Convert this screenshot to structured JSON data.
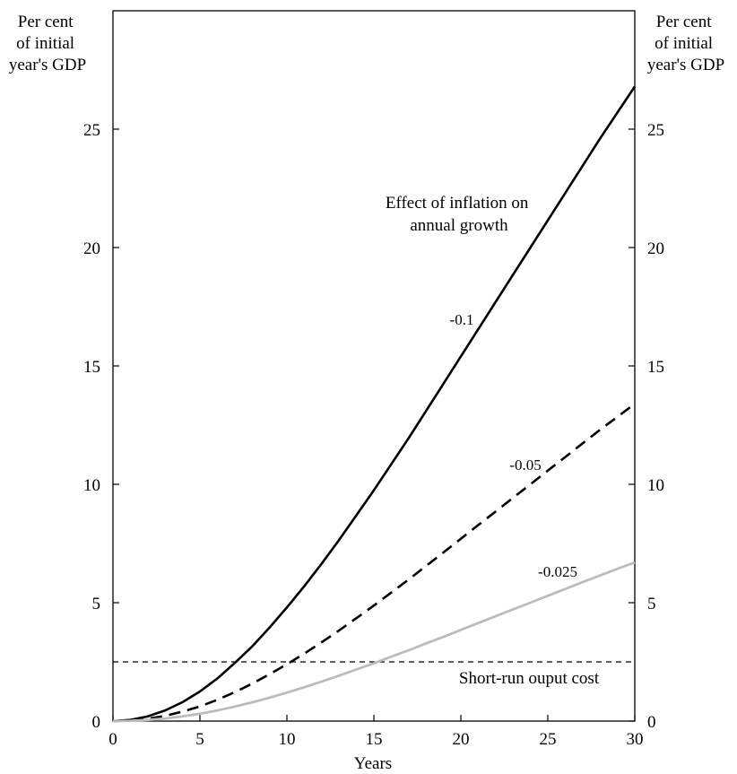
{
  "chart_data": {
    "type": "line",
    "title": "",
    "xlabel": "Years",
    "ylabel_left": [
      "Per cent",
      "of initial",
      "year's GDP"
    ],
    "ylabel_right": [
      "Per cent",
      "of initial",
      "year's GDP"
    ],
    "xlim": [
      0,
      30
    ],
    "ylim": [
      0,
      30
    ],
    "xticks": [
      0,
      5,
      10,
      15,
      20,
      25,
      30
    ],
    "yticks": [
      0,
      5,
      10,
      15,
      20,
      25
    ],
    "grid": false,
    "legend_title": [
      "Effect of inflation on",
      "annual growth"
    ],
    "series": [
      {
        "name": "-0.1",
        "style": "solid",
        "color": "#000000",
        "x": [
          0,
          1,
          2,
          3,
          4,
          5,
          6,
          7,
          8,
          9,
          10,
          11,
          12,
          13,
          14,
          15,
          16,
          17,
          18,
          19,
          20,
          21,
          22,
          23,
          24,
          25,
          26,
          27,
          28,
          29,
          30
        ],
        "y": [
          0,
          0.05,
          0.2,
          0.45,
          0.8,
          1.25,
          1.8,
          2.45,
          3.15,
          3.95,
          4.8,
          5.7,
          6.65,
          7.65,
          8.7,
          9.75,
          10.85,
          11.95,
          13.1,
          14.25,
          15.4,
          16.55,
          17.7,
          18.85,
          20.0,
          21.15,
          22.3,
          23.45,
          24.6,
          25.7,
          26.8
        ]
      },
      {
        "name": "-0.05",
        "style": "dashed",
        "color": "#000000",
        "x": [
          0,
          1,
          2,
          3,
          4,
          5,
          6,
          7,
          8,
          9,
          10,
          11,
          12,
          13,
          14,
          15,
          16,
          17,
          18,
          19,
          20,
          21,
          22,
          23,
          24,
          25,
          26,
          27,
          28,
          29,
          30
        ],
        "y": [
          0,
          0.03,
          0.1,
          0.22,
          0.4,
          0.62,
          0.9,
          1.22,
          1.58,
          1.98,
          2.4,
          2.85,
          3.33,
          3.83,
          4.35,
          4.88,
          5.43,
          5.98,
          6.55,
          7.12,
          7.7,
          8.28,
          8.85,
          9.43,
          10.0,
          10.58,
          11.15,
          11.73,
          12.3,
          12.85,
          13.4
        ]
      },
      {
        "name": "-0.025",
        "style": "solid",
        "color": "#bcbcbc",
        "x": [
          0,
          1,
          2,
          3,
          4,
          5,
          6,
          7,
          8,
          9,
          10,
          11,
          12,
          13,
          14,
          15,
          16,
          17,
          18,
          19,
          20,
          21,
          22,
          23,
          24,
          25,
          26,
          27,
          28,
          29,
          30
        ],
        "y": [
          0,
          0.01,
          0.05,
          0.11,
          0.2,
          0.31,
          0.45,
          0.61,
          0.79,
          0.99,
          1.2,
          1.43,
          1.67,
          1.92,
          2.18,
          2.44,
          2.72,
          2.99,
          3.28,
          3.56,
          3.85,
          4.14,
          4.43,
          4.72,
          5.0,
          5.29,
          5.58,
          5.87,
          6.15,
          6.43,
          6.7
        ]
      }
    ],
    "reference_line": {
      "label": "Short-run ouput cost",
      "y": 2.5,
      "style": "dashed",
      "color": "#000000"
    }
  }
}
